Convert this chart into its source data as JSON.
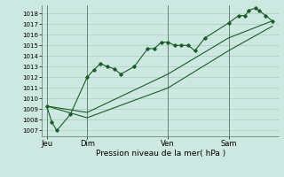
{
  "bg_color": "#cce8e0",
  "grid_color": "#aaccbb",
  "line_color": "#1a5c2a",
  "marker_color": "#1a5c2a",
  "xlabel": "Pression niveau de la mer( hPa )",
  "ylim": [
    1006.5,
    1018.8
  ],
  "yticks": [
    1007,
    1008,
    1009,
    1010,
    1011,
    1012,
    1013,
    1014,
    1015,
    1016,
    1017,
    1018
  ],
  "xtick_labels": [
    "Jeu",
    "Dim",
    "Ven",
    "Sam"
  ],
  "xtick_positions": [
    0,
    24,
    72,
    108
  ],
  "xlim": [
    -3,
    138
  ],
  "series1": [
    [
      0,
      1009.3
    ],
    [
      3,
      1007.8
    ],
    [
      6,
      1007.0
    ],
    [
      14,
      1008.5
    ],
    [
      24,
      1012.0
    ],
    [
      28,
      1012.7
    ],
    [
      32,
      1013.3
    ],
    [
      36,
      1013.0
    ],
    [
      40,
      1012.8
    ],
    [
      44,
      1012.3
    ],
    [
      52,
      1013.0
    ],
    [
      60,
      1014.7
    ],
    [
      64,
      1014.7
    ],
    [
      68,
      1015.3
    ],
    [
      72,
      1015.3
    ],
    [
      76,
      1015.0
    ],
    [
      80,
      1015.0
    ],
    [
      84,
      1015.0
    ],
    [
      88,
      1014.5
    ],
    [
      94,
      1015.7
    ],
    [
      108,
      1017.1
    ],
    [
      114,
      1017.8
    ],
    [
      118,
      1017.8
    ],
    [
      120,
      1018.3
    ],
    [
      124,
      1018.5
    ],
    [
      126,
      1018.3
    ],
    [
      130,
      1017.8
    ],
    [
      134,
      1017.3
    ]
  ],
  "series2": [
    [
      0,
      1009.3
    ],
    [
      24,
      1008.7
    ],
    [
      72,
      1012.3
    ],
    [
      108,
      1015.7
    ],
    [
      134,
      1017.3
    ]
  ],
  "series3": [
    [
      0,
      1009.3
    ],
    [
      24,
      1008.2
    ],
    [
      72,
      1011.0
    ],
    [
      108,
      1014.5
    ],
    [
      134,
      1016.8
    ]
  ],
  "vline_positions": [
    0,
    24,
    72,
    108
  ]
}
